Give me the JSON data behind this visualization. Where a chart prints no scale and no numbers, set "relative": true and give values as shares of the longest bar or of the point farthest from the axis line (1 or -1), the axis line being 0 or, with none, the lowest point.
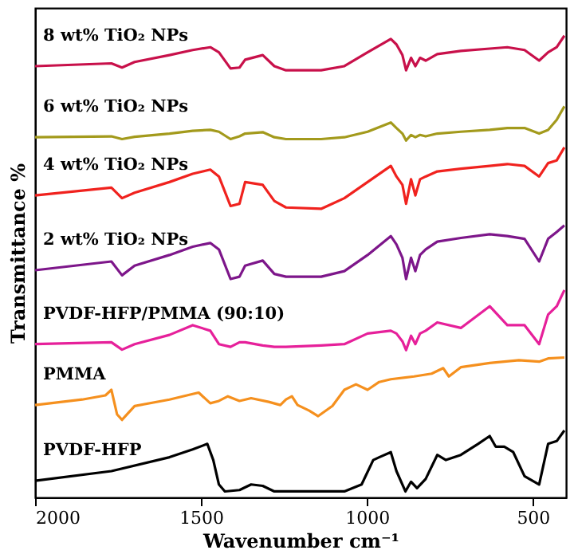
{
  "chart_data": {
    "type": "line",
    "relative": true,
    "xlabel": "Wavenumber cm⁻¹",
    "ylabel": "Transmittance %",
    "xlim": [
      2000,
      400
    ],
    "xticks": [
      2000,
      1500,
      1000,
      500
    ],
    "tick_labels": "x",
    "grid": false,
    "marker": "none",
    "line_style": "solid",
    "x": [
      2000,
      1770,
      1738,
      1700,
      1595,
      1525,
      1472,
      1446,
      1411,
      1384,
      1367,
      1314,
      1279,
      1244,
      1138,
      1068,
      998,
      928,
      911,
      893,
      882,
      867,
      854,
      840,
      823,
      788,
      717,
      630,
      577,
      525,
      481,
      454,
      428,
      405
    ],
    "series": [
      {
        "name": "8 wt% TiO₂ NPs",
        "color": "#c8104a",
        "values": [
          0.934,
          0.94,
          0.931,
          0.943,
          0.958,
          0.969,
          0.975,
          0.964,
          0.929,
          0.931,
          0.948,
          0.958,
          0.934,
          0.925,
          0.925,
          0.934,
          0.964,
          0.993,
          0.981,
          0.958,
          0.925,
          0.952,
          0.934,
          0.952,
          0.946,
          0.96,
          0.967,
          0.972,
          0.975,
          0.969,
          0.946,
          0.964,
          0.975,
          1.0
        ]
      },
      {
        "name": "6 wt% TiO₂ NPs",
        "color": "#a39a1c",
        "values": [
          0.78,
          0.782,
          0.776,
          0.781,
          0.788,
          0.794,
          0.796,
          0.792,
          0.776,
          0.782,
          0.788,
          0.791,
          0.78,
          0.776,
          0.776,
          0.78,
          0.792,
          0.812,
          0.8,
          0.788,
          0.773,
          0.785,
          0.78,
          0.785,
          0.782,
          0.788,
          0.792,
          0.796,
          0.8,
          0.8,
          0.788,
          0.796,
          0.818,
          0.847
        ]
      },
      {
        "name": "4 wt% TiO₂ NPs",
        "color": "#f0221e",
        "values": [
          0.654,
          0.671,
          0.648,
          0.66,
          0.683,
          0.701,
          0.71,
          0.695,
          0.631,
          0.636,
          0.683,
          0.677,
          0.642,
          0.628,
          0.625,
          0.648,
          0.683,
          0.718,
          0.695,
          0.677,
          0.636,
          0.689,
          0.654,
          0.689,
          0.695,
          0.706,
          0.712,
          0.718,
          0.722,
          0.718,
          0.695,
          0.724,
          0.73,
          0.758
        ]
      },
      {
        "name": "2 wt% TiO₂ NPs",
        "color": "#7d168a",
        "values": [
          0.492,
          0.511,
          0.481,
          0.502,
          0.525,
          0.543,
          0.551,
          0.537,
          0.473,
          0.478,
          0.502,
          0.513,
          0.484,
          0.478,
          0.478,
          0.49,
          0.525,
          0.566,
          0.548,
          0.519,
          0.473,
          0.519,
          0.49,
          0.525,
          0.537,
          0.554,
          0.562,
          0.57,
          0.566,
          0.56,
          0.511,
          0.56,
          0.575,
          0.589
        ]
      },
      {
        "name": "PVDF-HFP/PMMA (90:10)",
        "color": "#e6209a",
        "values": [
          0.332,
          0.336,
          0.32,
          0.332,
          0.352,
          0.373,
          0.361,
          0.332,
          0.326,
          0.336,
          0.336,
          0.329,
          0.326,
          0.326,
          0.329,
          0.332,
          0.355,
          0.361,
          0.355,
          0.338,
          0.319,
          0.35,
          0.332,
          0.355,
          0.361,
          0.379,
          0.367,
          0.414,
          0.373,
          0.373,
          0.332,
          0.396,
          0.414,
          0.449
        ]
      },
      {
        "name": "PMMA",
        "color": "#f5901e",
        "x": [
          2000,
          1858,
          1788,
          1770,
          1753,
          1738,
          1700,
          1595,
          1525,
          1507,
          1472,
          1446,
          1419,
          1384,
          1349,
          1296,
          1261,
          1244,
          1226,
          1209,
          1174,
          1147,
          1104,
          1068,
          1033,
          998,
          963,
          928,
          858,
          805,
          770,
          753,
          717,
          630,
          542,
          481,
          454,
          405
        ],
        "values": [
          0.2,
          0.212,
          0.221,
          0.233,
          0.18,
          0.168,
          0.198,
          0.212,
          0.224,
          0.227,
          0.204,
          0.209,
          0.219,
          0.209,
          0.215,
          0.207,
          0.2,
          0.212,
          0.219,
          0.2,
          0.188,
          0.176,
          0.198,
          0.233,
          0.245,
          0.233,
          0.25,
          0.256,
          0.262,
          0.268,
          0.28,
          0.262,
          0.282,
          0.291,
          0.297,
          0.294,
          0.301,
          0.303
        ]
      },
      {
        "name": "PVDF-HFP",
        "color": "#000000",
        "x": [
          2000,
          1770,
          1595,
          1525,
          1481,
          1463,
          1446,
          1428,
          1384,
          1349,
          1314,
          1279,
          1068,
          1016,
          981,
          963,
          928,
          911,
          884,
          867,
          849,
          823,
          788,
          762,
          717,
          665,
          630,
          612,
          586,
          559,
          525,
          481,
          454,
          428,
          405
        ],
        "values": [
          0.036,
          0.057,
          0.087,
          0.104,
          0.116,
          0.081,
          0.028,
          0.013,
          0.016,
          0.028,
          0.025,
          0.013,
          0.013,
          0.028,
          0.081,
          0.087,
          0.098,
          0.057,
          0.013,
          0.034,
          0.02,
          0.04,
          0.092,
          0.081,
          0.092,
          0.116,
          0.133,
          0.11,
          0.11,
          0.098,
          0.046,
          0.028,
          0.116,
          0.122,
          0.145
        ]
      }
    ]
  }
}
